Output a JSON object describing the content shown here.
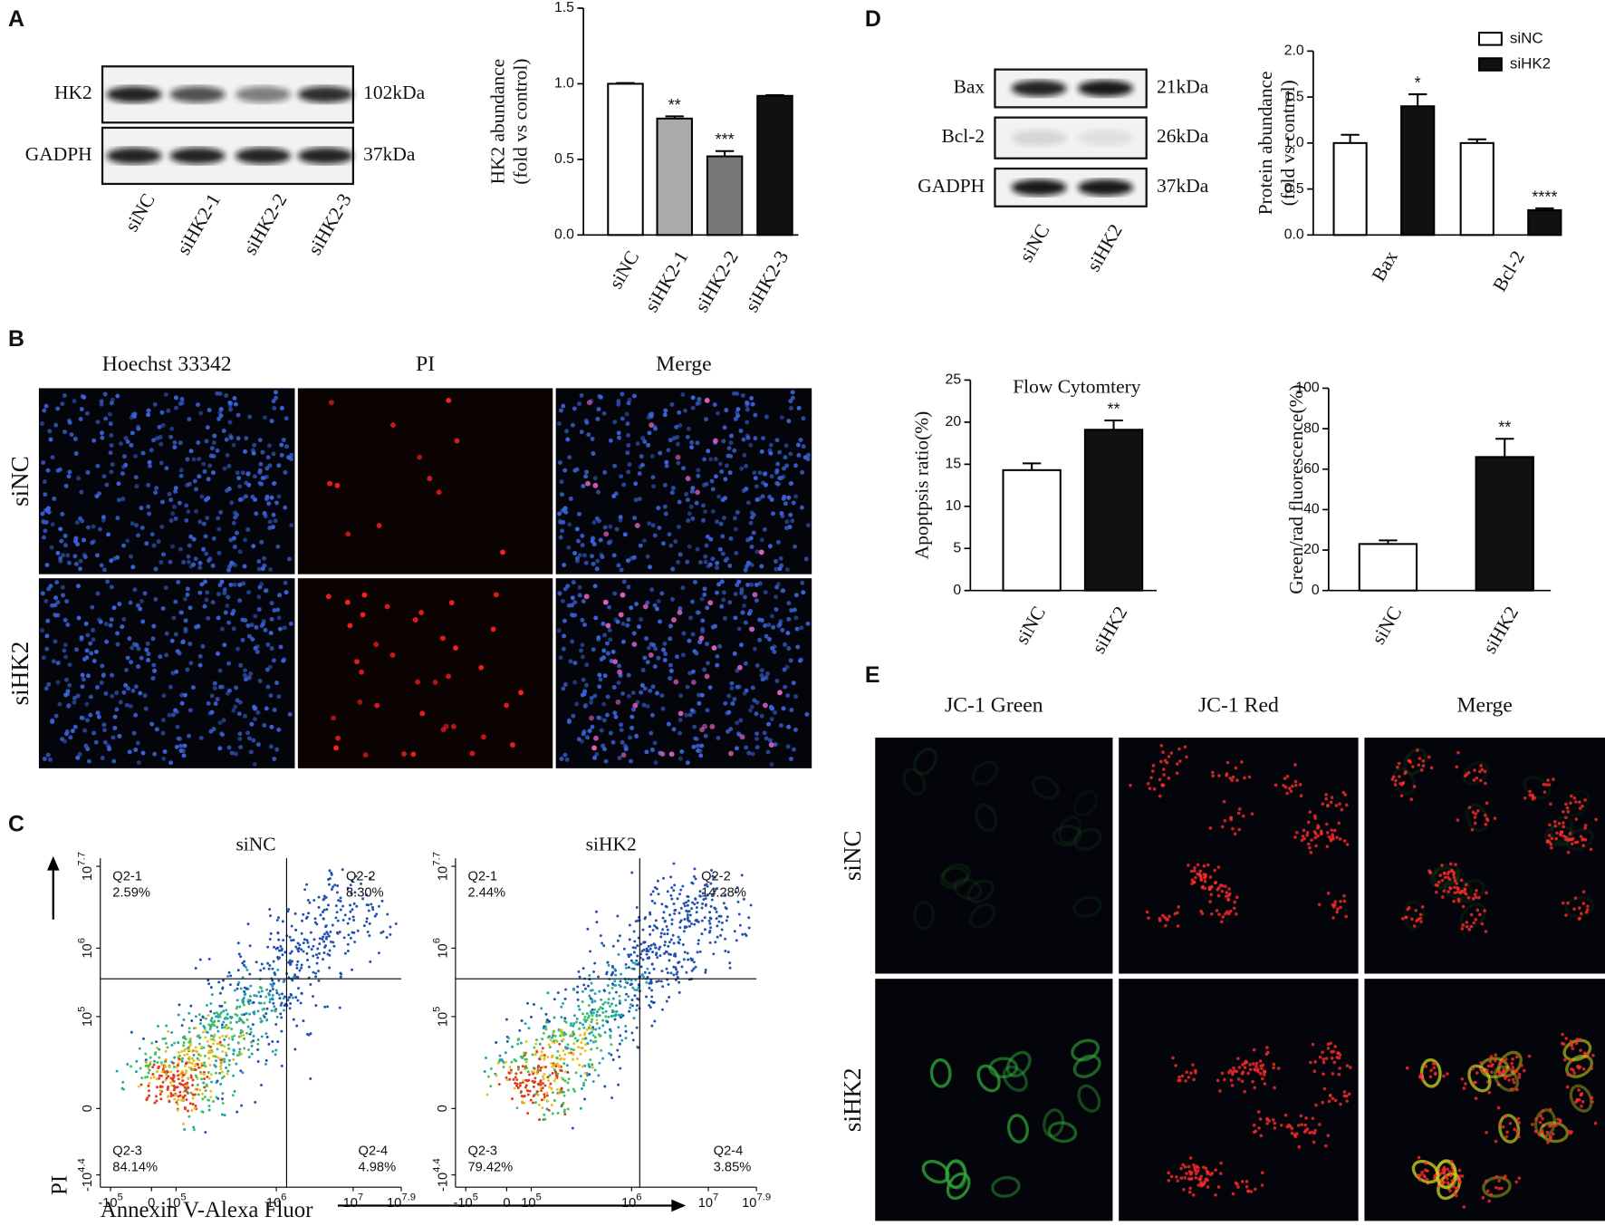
{
  "panel_labels": [
    "A",
    "B",
    "C",
    "D",
    "E"
  ],
  "blots": [
    {
      "rows": [
        "HK2",
        "GADPH"
      ],
      "sizes": [
        "102kDa",
        "37kDa"
      ],
      "lanes": [
        "siNC",
        "siHK2-1",
        "siHK2-2",
        "siHK2-3"
      ]
    },
    {
      "rows": [
        "Bax",
        "Bcl-2",
        "GADPH"
      ],
      "sizes": [
        "21kDa",
        "26kDa",
        "37kDa"
      ],
      "lanes": [
        "siNC",
        "siHK2"
      ]
    }
  ],
  "microscopy": [
    {
      "columns": [
        "Hoechst 33342",
        "PI",
        "Merge"
      ],
      "rows": [
        "siNC",
        "siHK2"
      ]
    },
    {
      "columns": [
        "JC-1  Green",
        "JC-1 Red",
        "Merge"
      ],
      "rows": [
        "siNC",
        "siHK2"
      ]
    }
  ],
  "flow_cytometry": {
    "y_label": "PI",
    "x_label": "Annexin V-Alexa Fluor",
    "y_ticks": [
      {
        "base": "10",
        "exp": "7.7"
      },
      {
        "base": "10",
        "exp": "6"
      },
      {
        "base": "10",
        "exp": "5"
      },
      "0",
      {
        "base": "-10",
        "exp": "4.4"
      }
    ],
    "x_ticks": [
      {
        "base": "-10",
        "exp": "5"
      },
      "0",
      {
        "base": "10",
        "exp": "5"
      },
      {
        "base": "10",
        "exp": "6"
      },
      {
        "base": "10",
        "exp": "7"
      },
      {
        "base": "10",
        "exp": "7.9"
      }
    ],
    "plots": [
      {
        "title": "siNC",
        "quadrants": [
          {
            "name": "Q2-1",
            "percent": "2.59%"
          },
          {
            "name": "Q2-2",
            "percent": "8.30%"
          },
          {
            "name": "Q2-3",
            "percent": "84.14%"
          },
          {
            "name": "Q2-4",
            "percent": "4.98%"
          }
        ]
      },
      {
        "title": "siHK2",
        "quadrants": [
          {
            "name": "Q2-1",
            "percent": "2.44%"
          },
          {
            "name": "Q2-2",
            "percent": "14.28%"
          },
          {
            "name": "Q2-3",
            "percent": "79.42%"
          },
          {
            "name": "Q2-4",
            "percent": "3.85%"
          }
        ]
      }
    ]
  },
  "chart_data": [
    {
      "type": "bar",
      "y_label": [
        "HK2 abundance",
        "(fold vs control)"
      ],
      "categories": [
        "siNC",
        "siHK2-1",
        "siHK2-2",
        "siHK2-3"
      ],
      "values": [
        1.0,
        0.77,
        0.52,
        0.92
      ],
      "errors": [
        0.005,
        0.015,
        0.035,
        0.005
      ],
      "colors": [
        "#ffffff",
        "#aaaaaa",
        "#777777",
        "#111111"
      ],
      "annotations": [
        null,
        "**",
        "***",
        null
      ],
      "ylim": [
        0,
        1.5
      ],
      "yticks": [
        {
          "value": 0,
          "label": "0.0"
        },
        {
          "value": 0.5,
          "label": "0.5"
        },
        {
          "value": 1,
          "label": "1.0"
        },
        {
          "value": 1.5,
          "label": "1.5"
        }
      ]
    },
    {
      "type": "grouped_bar",
      "y_label": [
        "Protein abundance",
        "(fold vs control)"
      ],
      "categories": [
        "Bax",
        "Bcl-2"
      ],
      "series": [
        {
          "name": "siNC",
          "color": "#ffffff",
          "values": [
            1.0,
            1.0
          ],
          "errors": [
            0.09,
            0.04
          ],
          "annotations": [
            null,
            null
          ]
        },
        {
          "name": "siHK2",
          "color": "#111111",
          "values": [
            1.4,
            0.27
          ],
          "errors": [
            0.13,
            0.02
          ],
          "annotations": [
            "*",
            "****"
          ]
        }
      ],
      "ylim": [
        0,
        2
      ],
      "yticks": [
        {
          "value": 0,
          "label": "0.0"
        },
        {
          "value": 0.5,
          "label": "0.5"
        },
        {
          "value": 1,
          "label": "1.0"
        },
        {
          "value": 1.5,
          "label": "1.5"
        },
        {
          "value": 2,
          "label": "2.0"
        }
      ],
      "legend": "top-right"
    },
    {
      "type": "bar",
      "title": "Flow Cytomtery",
      "y_label": "Apoptpsis  ratio(%)",
      "categories": [
        "siNC",
        "siHK2"
      ],
      "values": [
        14.3,
        19.1
      ],
      "errors": [
        0.8,
        1.1
      ],
      "colors": [
        "#ffffff",
        "#111111"
      ],
      "annotations": [
        null,
        "**"
      ],
      "ylim": [
        0,
        25
      ],
      "yticks": [
        0,
        5,
        10,
        15,
        20,
        25
      ]
    },
    {
      "type": "bar",
      "y_label": "Green/rad fluorescence(%)",
      "categories": [
        "siNC",
        "siHK2"
      ],
      "values": [
        23,
        66
      ],
      "errors": [
        1.8,
        9
      ],
      "colors": [
        "#ffffff",
        "#111111"
      ],
      "annotations": [
        null,
        "**"
      ],
      "ylim": [
        0,
        100
      ],
      "yticks": [
        0,
        20,
        40,
        60,
        80,
        100
      ]
    }
  ]
}
